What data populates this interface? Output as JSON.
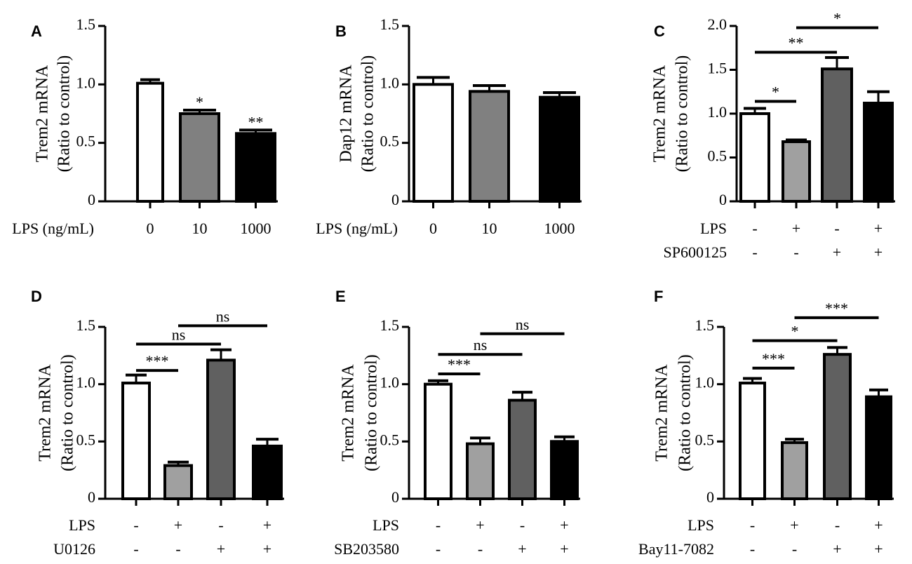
{
  "chart_data": [
    {
      "panel": "A",
      "type": "bar",
      "title": "",
      "ylabel": [
        "Trem2 mRNA",
        "(Ratio to control)"
      ],
      "ylim": [
        0,
        1.5
      ],
      "yticks": [
        "0",
        "0.5",
        "1.0",
        "1.5"
      ],
      "values": [
        1.01,
        0.75,
        0.58
      ],
      "errors": [
        0.03,
        0.03,
        0.03
      ],
      "colors": [
        "#ffffff",
        "#808080",
        "#000000"
      ],
      "xlabel": "LPS (ng/mL)",
      "categories": [
        "0",
        "10",
        "1000"
      ],
      "stars": [
        "",
        "*",
        "**"
      ],
      "brackets": []
    },
    {
      "panel": "B",
      "type": "bar",
      "title": "",
      "ylabel": [
        "Dap12 mRNA",
        "(Ratio to control)"
      ],
      "ylim": [
        0,
        1.5
      ],
      "yticks": [
        "0",
        "0.5",
        "1.0",
        "1.5"
      ],
      "values": [
        1.0,
        0.94,
        0.89
      ],
      "errors": [
        0.06,
        0.05,
        0.04
      ],
      "colors": [
        "#ffffff",
        "#808080",
        "#000000"
      ],
      "xlabel": "LPS (ng/mL)",
      "categories": [
        "0",
        "10",
        "1000"
      ],
      "stars": [
        "",
        "",
        ""
      ],
      "brackets": []
    },
    {
      "panel": "C",
      "type": "bar",
      "title": "",
      "ylabel": [
        "Trem2 mRNA",
        "(Ratio to control)"
      ],
      "ylim": [
        0,
        2.0
      ],
      "yticks": [
        "0",
        "0.5",
        "1.0",
        "1.5",
        "2.0"
      ],
      "values": [
        1.0,
        0.68,
        1.51,
        1.12
      ],
      "errors": [
        0.06,
        0.02,
        0.13,
        0.13
      ],
      "colors": [
        "#ffffff",
        "#a0a0a0",
        "#606060",
        "#000000"
      ],
      "rows": [
        {
          "label": "LPS",
          "signs": [
            "-",
            "+",
            "-",
            "+"
          ]
        },
        {
          "label": "SP600125",
          "signs": [
            "-",
            "-",
            "+",
            "+"
          ]
        }
      ],
      "stars": [
        "",
        "",
        "",
        ""
      ],
      "brackets": [
        {
          "from": 0,
          "to": 1,
          "level": 1.14,
          "label": "*"
        },
        {
          "from": 0,
          "to": 2,
          "level": 1.7,
          "label": "**"
        },
        {
          "from": 1,
          "to": 3,
          "level": 1.98,
          "label": "*"
        }
      ]
    },
    {
      "panel": "D",
      "type": "bar",
      "title": "",
      "ylabel": [
        "Trem2 mRNA",
        "(Ratio to control)"
      ],
      "ylim": [
        0,
        1.5
      ],
      "yticks": [
        "0",
        "0.5",
        "1.0",
        "1.5"
      ],
      "values": [
        1.01,
        0.29,
        1.21,
        0.46
      ],
      "errors": [
        0.07,
        0.03,
        0.09,
        0.06
      ],
      "colors": [
        "#ffffff",
        "#a0a0a0",
        "#606060",
        "#000000"
      ],
      "rows": [
        {
          "label": "LPS",
          "signs": [
            "-",
            "+",
            "-",
            "+"
          ]
        },
        {
          "label": "U0126",
          "signs": [
            "-",
            "-",
            "+",
            "+"
          ]
        }
      ],
      "stars": [
        "",
        "",
        "",
        ""
      ],
      "brackets": [
        {
          "from": 0,
          "to": 1,
          "level": 1.12,
          "label": "***"
        },
        {
          "from": 0,
          "to": 2,
          "level": 1.35,
          "label": "ns"
        },
        {
          "from": 1,
          "to": 3,
          "level": 1.51,
          "label": "ns"
        }
      ]
    },
    {
      "panel": "E",
      "type": "bar",
      "title": "",
      "ylabel": [
        "Trem2 mRNA",
        "(Ratio to control)"
      ],
      "ylim": [
        0,
        1.5
      ],
      "yticks": [
        "0",
        "0.5",
        "1.0",
        "1.5"
      ],
      "values": [
        1.0,
        0.48,
        0.86,
        0.5
      ],
      "errors": [
        0.03,
        0.05,
        0.07,
        0.04
      ],
      "colors": [
        "#ffffff",
        "#a0a0a0",
        "#606060",
        "#000000"
      ],
      "rows": [
        {
          "label": "LPS",
          "signs": [
            "-",
            "+",
            "-",
            "+"
          ]
        },
        {
          "label": "SB203580",
          "signs": [
            "-",
            "-",
            "+",
            "+"
          ]
        }
      ],
      "stars": [
        "",
        "",
        "",
        ""
      ],
      "brackets": [
        {
          "from": 0,
          "to": 1,
          "level": 1.09,
          "label": "***"
        },
        {
          "from": 0,
          "to": 2,
          "level": 1.26,
          "label": "ns"
        },
        {
          "from": 1,
          "to": 3,
          "level": 1.44,
          "label": "ns"
        }
      ]
    },
    {
      "panel": "F",
      "type": "bar",
      "title": "",
      "ylabel": [
        "Trem2 mRNA",
        "(Ratio to control)"
      ],
      "ylim": [
        0,
        1.5
      ],
      "yticks": [
        "0",
        "0.5",
        "1.0",
        "1.5"
      ],
      "values": [
        1.01,
        0.49,
        1.26,
        0.89
      ],
      "errors": [
        0.04,
        0.03,
        0.06,
        0.06
      ],
      "colors": [
        "#ffffff",
        "#a0a0a0",
        "#606060",
        "#000000"
      ],
      "rows": [
        {
          "label": "LPS",
          "signs": [
            "-",
            "+",
            "-",
            "+"
          ]
        },
        {
          "label": "Bay11-7082",
          "signs": [
            "-",
            "-",
            "+",
            "+"
          ]
        }
      ],
      "stars": [
        "",
        "",
        "",
        ""
      ],
      "brackets": [
        {
          "from": 0,
          "to": 1,
          "level": 1.14,
          "label": "***"
        },
        {
          "from": 0,
          "to": 2,
          "level": 1.38,
          "label": "*"
        },
        {
          "from": 1,
          "to": 3,
          "level": 1.58,
          "label": "***"
        }
      ]
    }
  ]
}
